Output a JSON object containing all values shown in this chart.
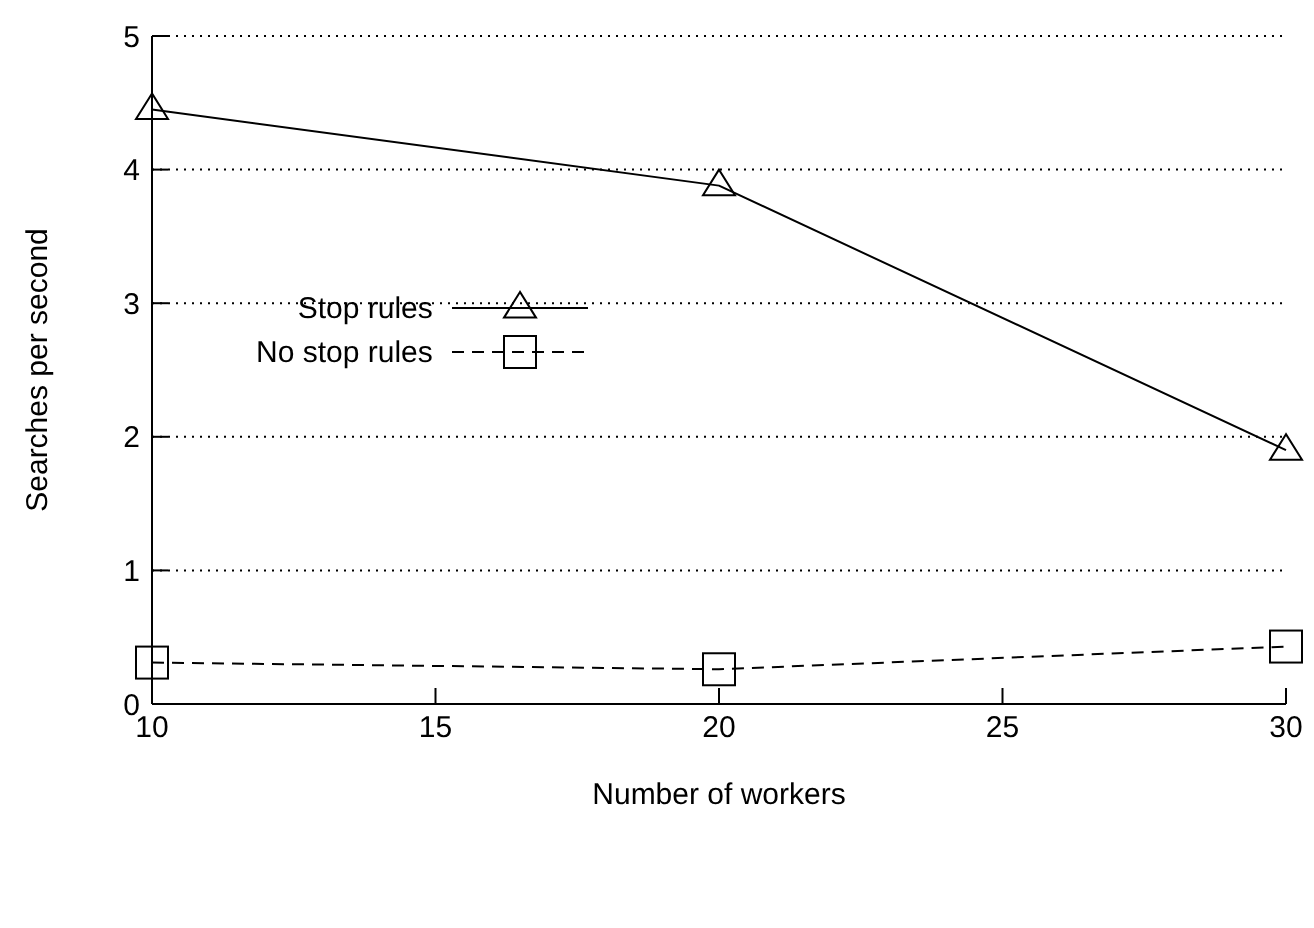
{
  "chart_data": {
    "type": "line",
    "xlabel": "Number of workers",
    "ylabel": "Searches per second",
    "x": [
      10,
      20,
      30
    ],
    "series": [
      {
        "name": "Stop rules",
        "color": "#000000",
        "marker": "triangle",
        "line_style": "solid",
        "values": [
          4.45,
          3.88,
          1.9
        ]
      },
      {
        "name": "No stop rules",
        "color": "#000000",
        "marker": "square",
        "line_style": "dashed",
        "values": [
          0.31,
          0.26,
          0.43
        ]
      }
    ],
    "xlim": [
      10,
      30
    ],
    "xticks": [
      10,
      15,
      20,
      25,
      30
    ],
    "ylim": [
      0,
      5
    ],
    "yticks": [
      0,
      1,
      2,
      3,
      4,
      5
    ],
    "grid": "y",
    "legend": "left"
  }
}
